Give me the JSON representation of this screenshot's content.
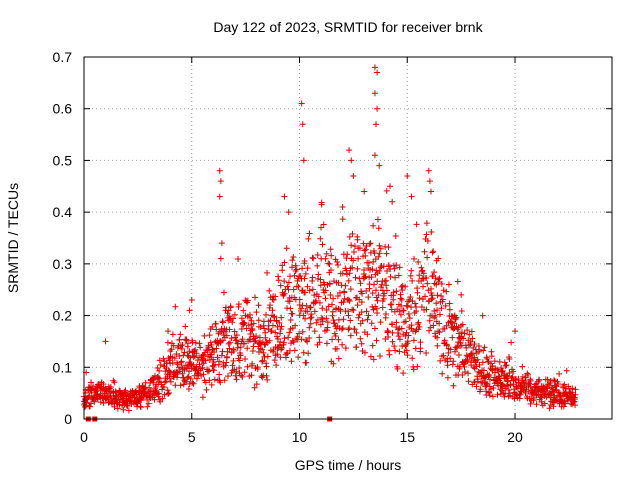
{
  "chart_data": {
    "type": "scatter",
    "title": "Day 122 of 2023, SRMTID for receiver brnk",
    "xlabel": "GPS time / hours",
    "ylabel": "SRMTID / TECUs",
    "xlim": [
      0,
      24.5
    ],
    "ylim": [
      0,
      0.7
    ],
    "xticks": [
      0,
      5,
      10,
      15,
      20
    ],
    "yticks": [
      0,
      0.1,
      0.2,
      0.3,
      0.4,
      0.5,
      0.6,
      0.7
    ],
    "xtick_labels": [
      "0",
      "5",
      "10",
      "15",
      "20"
    ],
    "ytick_labels": [
      "0",
      "0.1",
      "0.2",
      "0.3",
      "0.4",
      "0.5",
      "0.6",
      "0.7"
    ],
    "grid": true,
    "marker": "plus",
    "series": [
      {
        "name": "SRMTID",
        "color": "#e00000",
        "profile": {
          "x": [
            0.0,
            0.5,
            1.0,
            1.5,
            2.0,
            2.5,
            3.0,
            3.5,
            4.0,
            4.5,
            5.0,
            5.5,
            6.0,
            6.5,
            7.0,
            7.5,
            8.0,
            8.5,
            9.0,
            9.5,
            10.0,
            10.5,
            11.0,
            11.5,
            12.0,
            12.5,
            13.0,
            13.5,
            14.0,
            14.5,
            15.0,
            15.5,
            16.0,
            16.5,
            17.0,
            17.5,
            18.0,
            18.5,
            19.0,
            19.5,
            20.0,
            20.5,
            21.0,
            21.5,
            22.0,
            22.5,
            22.8
          ],
          "y": [
            0.04,
            0.05,
            0.05,
            0.04,
            0.035,
            0.04,
            0.05,
            0.07,
            0.1,
            0.12,
            0.1,
            0.1,
            0.12,
            0.14,
            0.15,
            0.16,
            0.14,
            0.15,
            0.2,
            0.22,
            0.2,
            0.24,
            0.24,
            0.22,
            0.22,
            0.25,
            0.24,
            0.26,
            0.25,
            0.2,
            0.18,
            0.22,
            0.26,
            0.2,
            0.15,
            0.14,
            0.12,
            0.1,
            0.08,
            0.07,
            0.06,
            0.06,
            0.05,
            0.05,
            0.05,
            0.045,
            0.045
          ]
        },
        "outliers": [
          {
            "x": 9.3,
            "y": 0.43
          },
          {
            "x": 9.5,
            "y": 0.4
          },
          {
            "x": 10.1,
            "y": 0.61
          },
          {
            "x": 10.15,
            "y": 0.57
          },
          {
            "x": 10.2,
            "y": 0.5
          },
          {
            "x": 6.3,
            "y": 0.48
          },
          {
            "x": 6.35,
            "y": 0.46
          },
          {
            "x": 6.3,
            "y": 0.43
          },
          {
            "x": 6.4,
            "y": 0.34
          },
          {
            "x": 6.35,
            "y": 0.31
          },
          {
            "x": 12.3,
            "y": 0.52
          },
          {
            "x": 12.4,
            "y": 0.5
          },
          {
            "x": 12.5,
            "y": 0.47
          },
          {
            "x": 13.5,
            "y": 0.68
          },
          {
            "x": 13.6,
            "y": 0.67
          },
          {
            "x": 13.5,
            "y": 0.63
          },
          {
            "x": 13.6,
            "y": 0.6
          },
          {
            "x": 13.55,
            "y": 0.57
          },
          {
            "x": 13.5,
            "y": 0.51
          },
          {
            "x": 13.7,
            "y": 0.49
          },
          {
            "x": 14.2,
            "y": 0.45
          },
          {
            "x": 14.3,
            "y": 0.42
          },
          {
            "x": 15.0,
            "y": 0.47
          },
          {
            "x": 15.2,
            "y": 0.43
          },
          {
            "x": 16.0,
            "y": 0.48
          },
          {
            "x": 16.05,
            "y": 0.46
          },
          {
            "x": 16.1,
            "y": 0.44
          },
          {
            "x": 11.0,
            "y": 0.37
          },
          {
            "x": 12.0,
            "y": 0.41
          },
          {
            "x": 13.0,
            "y": 0.44
          },
          {
            "x": 17.5,
            "y": 0.24
          },
          {
            "x": 18.5,
            "y": 0.2
          },
          {
            "x": 20.0,
            "y": 0.17
          },
          {
            "x": 5.0,
            "y": 0.23
          },
          {
            "x": 4.9,
            "y": 0.21
          },
          {
            "x": 1.0,
            "y": 0.15
          },
          {
            "x": 0.1,
            "y": 0.09
          },
          {
            "x": 3.9,
            "y": 0.17
          },
          {
            "x": 8.1,
            "y": 0.22
          }
        ]
      }
    ],
    "zero_markers": [
      0.2,
      0.5,
      11.4
    ]
  }
}
